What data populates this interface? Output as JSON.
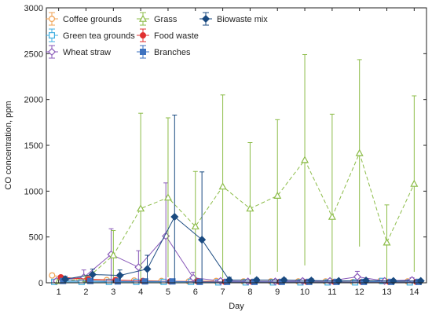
{
  "chart_data": {
    "type": "line",
    "xlabel": "Day",
    "ylabel": "CO concentration, ppm",
    "xlim": [
      0.55,
      14.45
    ],
    "ylim": [
      0,
      3000
    ],
    "xticks": [
      1,
      2,
      3,
      4,
      5,
      6,
      7,
      8,
      9,
      10,
      11,
      12,
      13,
      14
    ],
    "yticks": [
      0,
      500,
      1000,
      1500,
      2000,
      2500,
      3000
    ],
    "grid": false,
    "legend_position": "top-left",
    "series": [
      {
        "name": "Coffee grounds",
        "color": "#f0a050",
        "marker": "circle-open",
        "offset": -0.24,
        "values": [
          80,
          35,
          30,
          25,
          20,
          15,
          20,
          15,
          15,
          15,
          15,
          10,
          20,
          15
        ],
        "errors": [
          25,
          20,
          15,
          15,
          10,
          10,
          10,
          10,
          10,
          10,
          10,
          10,
          10,
          10
        ]
      },
      {
        "name": "Green tea grounds",
        "color": "#40aee0",
        "marker": "square-open",
        "offset": -0.16,
        "values": [
          10,
          10,
          10,
          10,
          10,
          10,
          5,
          5,
          5,
          5,
          5,
          5,
          20,
          5
        ],
        "errors": [
          10,
          10,
          10,
          10,
          10,
          10,
          5,
          5,
          5,
          5,
          5,
          5,
          15,
          5
        ]
      },
      {
        "name": "Wheat straw",
        "color": "#8858b8",
        "marker": "diamond-open",
        "offset": -0.08,
        "values": [
          20,
          60,
          310,
          170,
          510,
          55,
          20,
          15,
          15,
          20,
          20,
          65,
          20,
          30
        ],
        "errors": [
          20,
          80,
          280,
          180,
          580,
          60,
          20,
          15,
          15,
          20,
          20,
          60,
          20,
          25
        ]
      },
      {
        "name": "Grass",
        "color": "#8cbc48",
        "marker": "triangle-open",
        "offset": 0.0,
        "values": [
          20,
          40,
          300,
          810,
          930,
          615,
          1050,
          810,
          950,
          1340,
          720,
          1415,
          440,
          1080
        ],
        "errors": [
          20,
          40,
          270,
          1040,
          870,
          600,
          1000,
          720,
          830,
          1150,
          1120,
          1020,
          410,
          960
        ]
      },
      {
        "name": "Food waste",
        "color": "#e03030",
        "marker": "circle-filled",
        "offset": 0.08,
        "values": [
          60,
          40,
          30,
          20,
          15,
          15,
          10,
          10,
          10,
          10,
          10,
          10,
          10,
          10
        ],
        "errors": [
          20,
          15,
          15,
          10,
          10,
          10,
          5,
          5,
          5,
          5,
          5,
          5,
          5,
          5
        ]
      },
      {
        "name": "Branches",
        "color": "#3e72c0",
        "marker": "square-filled",
        "offset": 0.16,
        "values": [
          20,
          20,
          15,
          15,
          15,
          10,
          10,
          10,
          10,
          10,
          10,
          10,
          10,
          10
        ],
        "errors": [
          15,
          15,
          10,
          10,
          10,
          10,
          5,
          5,
          5,
          5,
          5,
          5,
          5,
          5
        ]
      },
      {
        "name": "Biowaste mix",
        "color": "#1a4a80",
        "marker": "diamond-filled",
        "offset": 0.24,
        "values": [
          40,
          90,
          80,
          150,
          720,
          470,
          30,
          30,
          30,
          25,
          20,
          25,
          20,
          20
        ],
        "errors": [
          30,
          60,
          60,
          150,
          1110,
          740,
          30,
          20,
          20,
          20,
          15,
          15,
          15,
          15
        ]
      }
    ]
  }
}
